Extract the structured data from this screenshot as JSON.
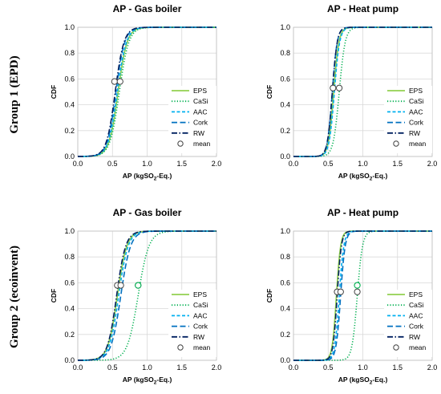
{
  "figure": {
    "group_labels": [
      "Group 1 (EPD)",
      "Group 2 (ecoinvent)"
    ]
  },
  "series_styles": [
    {
      "name": "EPS",
      "color": "#92D050",
      "dash": "solid"
    },
    {
      "name": "CaSi",
      "color": "#00B050",
      "dash": "dot"
    },
    {
      "name": "AAC",
      "color": "#00B0F0",
      "dash": "dash-short"
    },
    {
      "name": "Cork",
      "color": "#0070C0",
      "dash": "dash-long"
    },
    {
      "name": "RW",
      "color": "#002060",
      "dash": "dash-dot"
    }
  ],
  "mean_label": "mean",
  "chart_data": [
    {
      "type": "line",
      "title": "AP - Gas boiler",
      "xlabel_main": "AP (kgSO",
      "xlabel_sub": "2",
      "xlabel_tail": "-Eq.)",
      "ylabel": "CDF",
      "xlim": [
        0,
        2.0
      ],
      "ylim": [
        0,
        1.0
      ],
      "xticks": [
        "0.0",
        "0.5",
        "1.0",
        "1.5",
        "2.0"
      ],
      "yticks": [
        "0.0",
        "0.2",
        "0.4",
        "0.6",
        "0.8",
        "1.0"
      ],
      "grid": true,
      "legend_position": "bottom-right",
      "series": [
        {
          "name": "EPS",
          "median": 0.58,
          "spread": 0.26,
          "mean": 0.59
        },
        {
          "name": "CaSi",
          "median": 0.6,
          "spread": 0.27,
          "mean": 0.6
        },
        {
          "name": "AAC",
          "median": 0.57,
          "spread": 0.26,
          "mean": 0.57
        },
        {
          "name": "Cork",
          "median": 0.55,
          "spread": 0.25,
          "mean": 0.55
        },
        {
          "name": "RW",
          "median": 0.54,
          "spread": 0.25,
          "mean": 0.54
        }
      ],
      "means": [
        {
          "x": 0.53,
          "y": 0.58
        },
        {
          "x": 0.61,
          "y": 0.58
        }
      ]
    },
    {
      "type": "line",
      "title": "AP - Heat pump",
      "xlabel_main": "AP (kgSO",
      "xlabel_sub": "2",
      "xlabel_tail": "-Eq.)",
      "ylabel": "CDF",
      "xlim": [
        0,
        2.0
      ],
      "ylim": [
        0,
        1.0
      ],
      "xticks": [
        "0.0",
        "0.5",
        "1.0",
        "1.5",
        "2.0"
      ],
      "yticks": [
        "0.0",
        "0.2",
        "0.4",
        "0.6",
        "0.8",
        "1.0"
      ],
      "grid": true,
      "legend_position": "bottom-right",
      "series": [
        {
          "name": "EPS",
          "median": 0.58,
          "spread": 0.15,
          "mean": 0.58
        },
        {
          "name": "CaSi",
          "median": 0.66,
          "spread": 0.17,
          "mean": 0.66
        },
        {
          "name": "AAC",
          "median": 0.59,
          "spread": 0.15,
          "mean": 0.59
        },
        {
          "name": "Cork",
          "median": 0.56,
          "spread": 0.14,
          "mean": 0.56
        },
        {
          "name": "RW",
          "median": 0.56,
          "spread": 0.14,
          "mean": 0.56
        }
      ],
      "means": [
        {
          "x": 0.57,
          "y": 0.53
        },
        {
          "x": 0.66,
          "y": 0.53
        }
      ]
    },
    {
      "type": "line",
      "title": "AP - Gas boiler",
      "xlabel_main": "AP (kgSO",
      "xlabel_sub": "2",
      "xlabel_tail": "-Eq.)",
      "ylabel": "CDF",
      "xlim": [
        0,
        2.0
      ],
      "ylim": [
        0,
        1.0
      ],
      "xticks": [
        "0.0",
        "0.5",
        "1.0",
        "1.5",
        "2.0"
      ],
      "yticks": [
        "0.0",
        "0.2",
        "0.4",
        "0.6",
        "0.8",
        "1.0"
      ],
      "grid": true,
      "legend_position": "bottom-right",
      "series": [
        {
          "name": "EPS",
          "median": 0.57,
          "spread": 0.27,
          "mean": 0.57
        },
        {
          "name": "CaSi",
          "median": 0.87,
          "spread": 0.31,
          "mean": 0.87
        },
        {
          "name": "AAC",
          "median": 0.59,
          "spread": 0.27,
          "mean": 0.59
        },
        {
          "name": "Cork",
          "median": 0.62,
          "spread": 0.28,
          "mean": 0.62
        },
        {
          "name": "RW",
          "median": 0.56,
          "spread": 0.26,
          "mean": 0.56
        }
      ],
      "means": [
        {
          "x": 0.57,
          "y": 0.58
        },
        {
          "x": 0.62,
          "y": 0.58
        },
        {
          "x": 0.87,
          "y": 0.58
        }
      ]
    },
    {
      "type": "line",
      "title": "AP - Heat pump",
      "xlabel_main": "AP (kgSO",
      "xlabel_sub": "2",
      "xlabel_tail": "-Eq.)",
      "ylabel": "CDF",
      "xlim": [
        0,
        2.0
      ],
      "ylim": [
        0,
        1.0
      ],
      "xticks": [
        "0.0",
        "0.5",
        "1.0",
        "1.5",
        "2.0"
      ],
      "yticks": [
        "0.0",
        "0.2",
        "0.4",
        "0.6",
        "0.8",
        "1.0"
      ],
      "grid": true,
      "legend_position": "bottom-right",
      "series": [
        {
          "name": "EPS",
          "median": 0.62,
          "spread": 0.12,
          "mean": 0.62
        },
        {
          "name": "CaSi",
          "median": 0.92,
          "spread": 0.15,
          "mean": 0.92
        },
        {
          "name": "AAC",
          "median": 0.66,
          "spread": 0.13,
          "mean": 0.66
        },
        {
          "name": "Cork",
          "median": 0.68,
          "spread": 0.13,
          "mean": 0.68
        },
        {
          "name": "RW",
          "median": 0.63,
          "spread": 0.12,
          "mean": 0.63
        }
      ],
      "means": [
        {
          "x": 0.63,
          "y": 0.53
        },
        {
          "x": 0.68,
          "y": 0.53
        },
        {
          "x": 0.92,
          "y": 0.53
        }
      ]
    }
  ]
}
